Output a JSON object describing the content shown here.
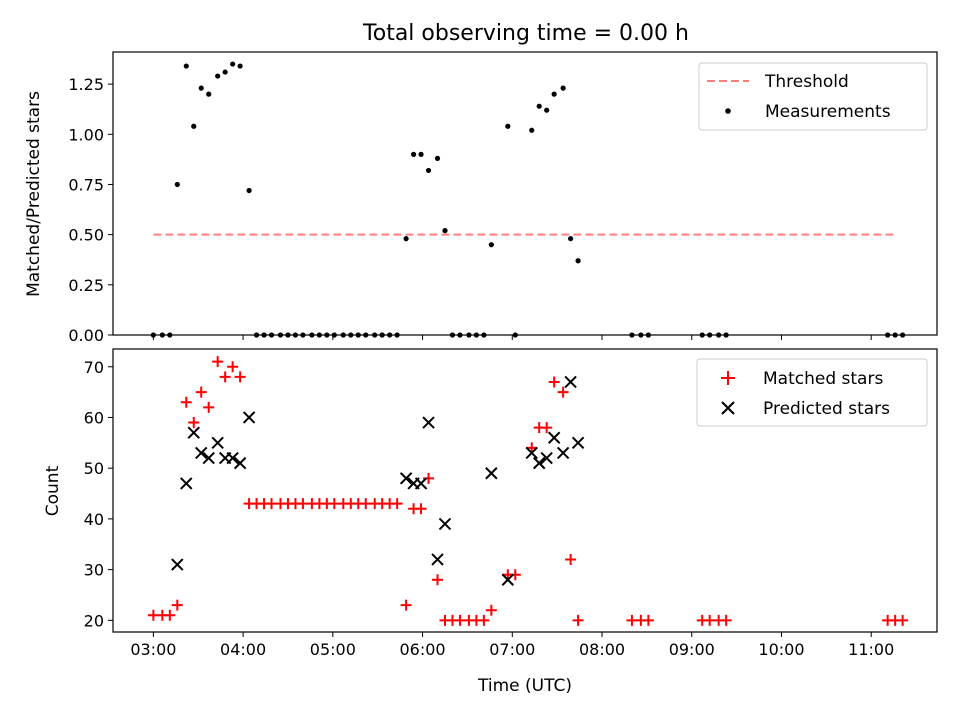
{
  "figure_title": "Total observing time = 0.00 h",
  "colors": {
    "threshold": "#ff7f7f",
    "measurement": "#000000",
    "matched": "#ff0000",
    "predicted": "#000000",
    "axes": "#000000"
  },
  "chart_data": [
    {
      "type": "scatter",
      "title": "Total observing time = 0.00 h",
      "xlabel": "",
      "ylabel": "Matched/Predicted stars",
      "xlim": [
        "02:33",
        "11:44"
      ],
      "ylim": [
        0,
        1.41
      ],
      "yticks": [
        0.0,
        0.25,
        0.5,
        0.75,
        1.0,
        1.25
      ],
      "ytick_labels": [
        "0.00",
        "0.25",
        "0.50",
        "0.75",
        "1.00",
        "1.25"
      ],
      "xticks": [
        "03:00",
        "04:00",
        "05:00",
        "06:00",
        "07:00",
        "08:00",
        "09:00",
        "10:00",
        "11:00"
      ],
      "grid": false,
      "legend_position": "top-right",
      "threshold": {
        "name": "Threshold",
        "style": "dashed",
        "y": 0.5,
        "x_start": "03:00",
        "x_end": "11:16"
      },
      "series": [
        {
          "name": "Measurements",
          "marker": "dot",
          "points": [
            [
              "03:00",
              0
            ],
            [
              "03:06",
              0
            ],
            [
              "03:11",
              0
            ],
            [
              "03:16",
              0.75
            ],
            [
              "03:22",
              1.34
            ],
            [
              "03:27",
              1.04
            ],
            [
              "03:32",
              1.23
            ],
            [
              "03:37",
              1.2
            ],
            [
              "03:43",
              1.29
            ],
            [
              "03:48",
              1.31
            ],
            [
              "03:53",
              1.35
            ],
            [
              "03:58",
              1.34
            ],
            [
              "04:04",
              0.72
            ],
            [
              "04:09",
              0
            ],
            [
              "04:14",
              0
            ],
            [
              "04:19",
              0
            ],
            [
              "04:25",
              0
            ],
            [
              "04:30",
              0
            ],
            [
              "04:35",
              0
            ],
            [
              "04:40",
              0
            ],
            [
              "04:46",
              0
            ],
            [
              "04:51",
              0
            ],
            [
              "04:56",
              0
            ],
            [
              "05:01",
              0
            ],
            [
              "05:07",
              0
            ],
            [
              "05:12",
              0
            ],
            [
              "05:17",
              0
            ],
            [
              "05:22",
              0
            ],
            [
              "05:28",
              0
            ],
            [
              "05:33",
              0
            ],
            [
              "05:38",
              0
            ],
            [
              "05:43",
              0
            ],
            [
              "05:49",
              0.48
            ],
            [
              "05:54",
              0.9
            ],
            [
              "05:59",
              0.9
            ],
            [
              "06:04",
              0.82
            ],
            [
              "06:10",
              0.88
            ],
            [
              "06:15",
              0.52
            ],
            [
              "06:20",
              0
            ],
            [
              "06:25",
              0
            ],
            [
              "06:31",
              0
            ],
            [
              "06:36",
              0
            ],
            [
              "06:41",
              0
            ],
            [
              "06:46",
              0.45
            ],
            [
              "06:57",
              1.04
            ],
            [
              "07:02",
              0
            ],
            [
              "07:13",
              1.02
            ],
            [
              "07:18",
              1.14
            ],
            [
              "07:23",
              1.12
            ],
            [
              "07:28",
              1.2
            ],
            [
              "07:34",
              1.23
            ],
            [
              "07:39",
              0.48
            ],
            [
              "07:44",
              0.37
            ],
            [
              "08:20",
              0
            ],
            [
              "08:26",
              0
            ],
            [
              "08:31",
              0
            ],
            [
              "09:07",
              0
            ],
            [
              "09:12",
              0
            ],
            [
              "09:18",
              0
            ],
            [
              "09:23",
              0
            ],
            [
              "11:11",
              0
            ],
            [
              "11:16",
              0
            ],
            [
              "11:21",
              0
            ]
          ]
        }
      ]
    },
    {
      "type": "scatter",
      "title": "",
      "xlabel": "Time (UTC)",
      "ylabel": "Count",
      "xlim": [
        "02:33",
        "11:44"
      ],
      "ylim": [
        17.7,
        73.5
      ],
      "yticks": [
        20,
        30,
        40,
        50,
        60,
        70
      ],
      "ytick_labels": [
        "20",
        "30",
        "40",
        "50",
        "60",
        "70"
      ],
      "xticks": [
        "03:00",
        "04:00",
        "05:00",
        "06:00",
        "07:00",
        "08:00",
        "09:00",
        "10:00",
        "11:00"
      ],
      "grid": false,
      "legend_position": "top-right",
      "series": [
        {
          "name": "Matched stars",
          "marker": "plus",
          "points": [
            [
              "03:00",
              21
            ],
            [
              "03:06",
              21
            ],
            [
              "03:11",
              21
            ],
            [
              "03:16",
              23
            ],
            [
              "03:22",
              63
            ],
            [
              "03:27",
              59
            ],
            [
              "03:32",
              65
            ],
            [
              "03:37",
              62
            ],
            [
              "03:43",
              71
            ],
            [
              "03:48",
              68
            ],
            [
              "03:53",
              70
            ],
            [
              "03:58",
              68
            ],
            [
              "04:04",
              43
            ],
            [
              "04:09",
              43
            ],
            [
              "04:14",
              43
            ],
            [
              "04:19",
              43
            ],
            [
              "04:25",
              43
            ],
            [
              "04:30",
              43
            ],
            [
              "04:35",
              43
            ],
            [
              "04:40",
              43
            ],
            [
              "04:46",
              43
            ],
            [
              "04:51",
              43
            ],
            [
              "04:56",
              43
            ],
            [
              "05:01",
              43
            ],
            [
              "05:07",
              43
            ],
            [
              "05:12",
              43
            ],
            [
              "05:17",
              43
            ],
            [
              "05:22",
              43
            ],
            [
              "05:28",
              43
            ],
            [
              "05:33",
              43
            ],
            [
              "05:38",
              43
            ],
            [
              "05:43",
              43
            ],
            [
              "05:49",
              23
            ],
            [
              "05:54",
              42
            ],
            [
              "05:59",
              42
            ],
            [
              "06:04",
              48
            ],
            [
              "06:10",
              28
            ],
            [
              "06:15",
              20
            ],
            [
              "06:20",
              20
            ],
            [
              "06:25",
              20
            ],
            [
              "06:31",
              20
            ],
            [
              "06:36",
              20
            ],
            [
              "06:41",
              20
            ],
            [
              "06:46",
              22
            ],
            [
              "06:57",
              29
            ],
            [
              "07:02",
              29
            ],
            [
              "07:13",
              54
            ],
            [
              "07:18",
              58
            ],
            [
              "07:23",
              58
            ],
            [
              "07:28",
              67
            ],
            [
              "07:34",
              65
            ],
            [
              "07:39",
              32
            ],
            [
              "07:44",
              20
            ],
            [
              "08:20",
              20
            ],
            [
              "08:26",
              20
            ],
            [
              "08:31",
              20
            ],
            [
              "09:07",
              20
            ],
            [
              "09:12",
              20
            ],
            [
              "09:18",
              20
            ],
            [
              "09:23",
              20
            ],
            [
              "11:11",
              20
            ],
            [
              "11:16",
              20
            ],
            [
              "11:21",
              20
            ]
          ]
        },
        {
          "name": "Predicted stars",
          "marker": "x",
          "points": [
            [
              "03:16",
              31
            ],
            [
              "03:22",
              47
            ],
            [
              "03:27",
              57
            ],
            [
              "03:32",
              53
            ],
            [
              "03:37",
              52
            ],
            [
              "03:43",
              55
            ],
            [
              "03:48",
              52
            ],
            [
              "03:53",
              52
            ],
            [
              "03:58",
              51
            ],
            [
              "04:04",
              60
            ],
            [
              "05:49",
              48
            ],
            [
              "05:54",
              47
            ],
            [
              "05:59",
              47
            ],
            [
              "06:04",
              59
            ],
            [
              "06:10",
              32
            ],
            [
              "06:15",
              39
            ],
            [
              "06:46",
              49
            ],
            [
              "06:57",
              28
            ],
            [
              "07:13",
              53
            ],
            [
              "07:18",
              51
            ],
            [
              "07:23",
              52
            ],
            [
              "07:28",
              56
            ],
            [
              "07:34",
              53
            ],
            [
              "07:39",
              67
            ],
            [
              "07:44",
              55
            ]
          ]
        }
      ]
    }
  ]
}
